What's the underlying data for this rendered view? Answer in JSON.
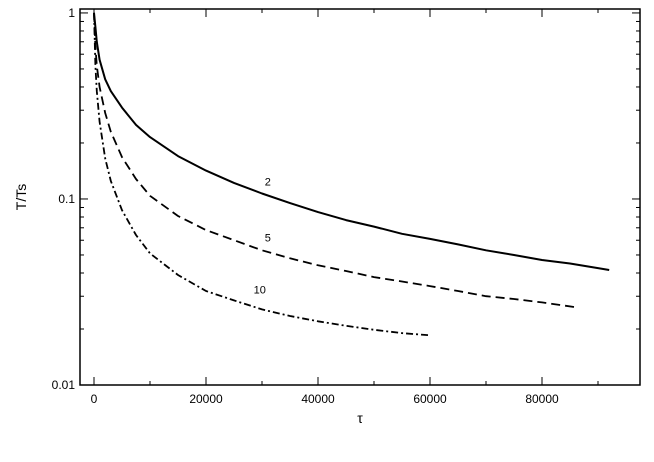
{
  "chart_data": {
    "type": "line",
    "title": "",
    "xlabel": "τ",
    "ylabel": "T/Ts",
    "xlim": [
      -2500,
      97500
    ],
    "ylim": [
      0.01,
      1.05
    ],
    "yscale": "log",
    "grid": false,
    "x_ticks": [
      0,
      20000,
      40000,
      60000,
      80000
    ],
    "x_tick_labels": [
      "0",
      "20000",
      "40000",
      "60000",
      "80000"
    ],
    "y_ticks": [
      0.01,
      0.1,
      1
    ],
    "y_tick_labels": [
      "0.01",
      "0.1",
      "1"
    ],
    "series": [
      {
        "name": "2",
        "line_style": "solid",
        "x": [
          0,
          250,
          500,
          1000,
          2000,
          3000,
          5000,
          7500,
          10000,
          15000,
          20000,
          25000,
          30000,
          35000,
          40000,
          45000,
          50000,
          55000,
          60000,
          65000,
          70000,
          75000,
          80000,
          85000,
          90000,
          92000
        ],
        "y": [
          1.0,
          0.84,
          0.7,
          0.56,
          0.44,
          0.38,
          0.31,
          0.25,
          0.215,
          0.17,
          0.142,
          0.122,
          0.107,
          0.095,
          0.085,
          0.077,
          0.071,
          0.065,
          0.061,
          0.057,
          0.053,
          0.05,
          0.047,
          0.045,
          0.0425,
          0.0415
        ],
        "label_x": 30500,
        "label_y": 0.118
      },
      {
        "name": "5",
        "line_style": "dashed",
        "x": [
          0,
          250,
          500,
          1000,
          2000,
          3000,
          5000,
          7500,
          10000,
          15000,
          20000,
          25000,
          30000,
          35000,
          40000,
          45000,
          50000,
          55000,
          60000,
          65000,
          70000,
          75000,
          80000,
          86000
        ],
        "y": [
          1.0,
          0.66,
          0.52,
          0.4,
          0.29,
          0.23,
          0.168,
          0.128,
          0.104,
          0.081,
          0.068,
          0.06,
          0.053,
          0.048,
          0.044,
          0.041,
          0.038,
          0.036,
          0.034,
          0.032,
          0.03,
          0.029,
          0.0278,
          0.0262
        ],
        "label_x": 30500,
        "label_y": 0.059
      },
      {
        "name": "10",
        "line_style": "dashdot",
        "x": [
          0,
          250,
          500,
          1000,
          2000,
          3000,
          5000,
          7500,
          10000,
          15000,
          20000,
          25000,
          30000,
          35000,
          40000,
          45000,
          50000,
          55000,
          60000
        ],
        "y": [
          1.0,
          0.52,
          0.38,
          0.26,
          0.165,
          0.125,
          0.087,
          0.064,
          0.051,
          0.039,
          0.032,
          0.0285,
          0.0255,
          0.0235,
          0.022,
          0.0208,
          0.0198,
          0.019,
          0.0185
        ],
        "label_x": 28500,
        "label_y": 0.031
      }
    ]
  }
}
